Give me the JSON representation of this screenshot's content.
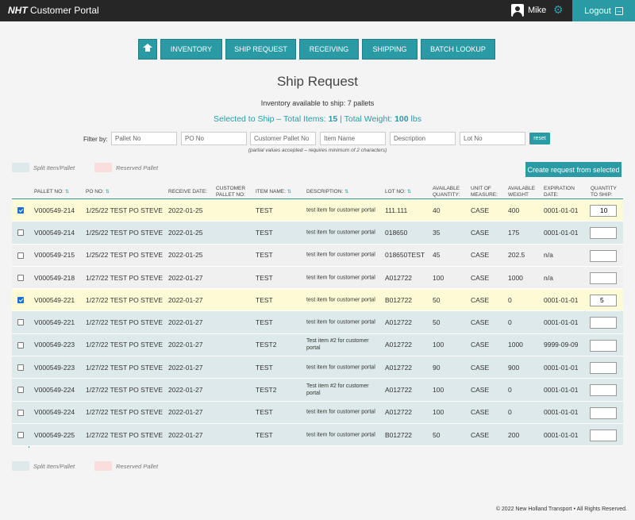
{
  "header": {
    "brand_bold": "NHT",
    "brand_rest": " Customer Portal",
    "user_name": "Mike",
    "logout_label": "Logout"
  },
  "nav": {
    "items": [
      "INVENTORY",
      "SHIP REQUEST",
      "RECEIVING",
      "SHIPPING",
      "BATCH LOOKUP"
    ]
  },
  "page": {
    "title": "Ship Request",
    "available": "Inventory available to ship: 7 pallets",
    "selected_prefix": "Selected to Ship – Total Items: ",
    "total_items": "15",
    "weight_prefix": " | Total Weight: ",
    "total_weight": "100",
    "weight_unit": " lbs"
  },
  "filter": {
    "label": "Filter by:",
    "placeholders": [
      "Pallet No",
      "PO No",
      "Customer Pallet No",
      "Item Name",
      "Description",
      "Lot No"
    ],
    "reset_label": "reset",
    "hint": "(partial values accepted – requires minimum of 2 characters)"
  },
  "legend": {
    "split": "Split Item/Pallet",
    "reserved": "Reserved Pallet"
  },
  "create_label": "Create request from selected",
  "table": {
    "headers": {
      "pallet": "PALLET NO:",
      "po": "PO NO:",
      "receive": "RECEIVE DATE:",
      "cust_pallet_1": "CUSTOMER",
      "cust_pallet_2": "PALLET NO:",
      "item": "ITEM NAME:",
      "desc": "DESCRIPTION:",
      "lot": "LOT NO:",
      "avail_1": "AVAILABLE",
      "avail_2": "QUANTITY:",
      "unit_1": "UNIT OF",
      "unit_2": "MEASURE:",
      "weight_1": "AVAILABLE",
      "weight_2": "WEIGHT",
      "exp_1": "EXPIRATION",
      "exp_2": "DATE:",
      "qty_1": "QUANTITY",
      "qty_2": "TO SHIP:"
    },
    "rows": [
      {
        "pallet": "V000549-214",
        "po": "1/25/22 TEST PO STEVE",
        "receive": "2022-01-25",
        "item": "TEST",
        "desc": "test item for customer portal",
        "lot": "111.111",
        "avail": "40",
        "unit": "CASE",
        "weight": "400",
        "exp": "0001-01-01",
        "qty": "10"
      },
      {
        "pallet": "V000549-214",
        "po": "1/25/22 TEST PO STEVE",
        "receive": "2022-01-25",
        "item": "TEST",
        "desc": "test item for customer portal",
        "lot": "018650",
        "avail": "35",
        "unit": "CASE",
        "weight": "175",
        "exp": "0001-01-01",
        "qty": ""
      },
      {
        "pallet": "V000549-215",
        "po": "1/25/22 TEST PO STEVE",
        "receive": "2022-01-25",
        "item": "TEST",
        "desc": "test item for customer portal",
        "lot": "018650TEST",
        "avail": "45",
        "unit": "CASE",
        "weight": "202.5",
        "exp": "n/a",
        "qty": ""
      },
      {
        "pallet": "V000549-218",
        "po": "1/27/22 TEST PO STEVE",
        "receive": "2022-01-27",
        "item": "TEST",
        "desc": "test item for customer portal",
        "lot": "A012722",
        "avail": "100",
        "unit": "CASE",
        "weight": "1000",
        "exp": "n/a",
        "qty": ""
      },
      {
        "pallet": "V000549-221",
        "po": "1/27/22 TEST PO STEVE",
        "receive": "2022-01-27",
        "item": "TEST",
        "desc": "test item for customer portal",
        "lot": "B012722",
        "avail": "50",
        "unit": "CASE",
        "weight": "0",
        "exp": "0001-01-01",
        "qty": "5"
      },
      {
        "pallet": "V000549-221",
        "po": "1/27/22 TEST PO STEVE",
        "receive": "2022-01-27",
        "item": "TEST",
        "desc": "test item for customer portal",
        "lot": "A012722",
        "avail": "50",
        "unit": "CASE",
        "weight": "0",
        "exp": "0001-01-01",
        "qty": ""
      },
      {
        "pallet": "V000549-223",
        "po": "1/27/22 TEST PO STEVE",
        "receive": "2022-01-27",
        "item": "TEST2",
        "desc": "Test item #2 for customer portal",
        "lot": "A012722",
        "avail": "100",
        "unit": "CASE",
        "weight": "1000",
        "exp": "9999-09-09",
        "qty": ""
      },
      {
        "pallet": "V000549-223",
        "po": "1/27/22 TEST PO STEVE",
        "receive": "2022-01-27",
        "item": "TEST",
        "desc": "test item for customer portal",
        "lot": "A012722",
        "avail": "90",
        "unit": "CASE",
        "weight": "900",
        "exp": "0001-01-01",
        "qty": ""
      },
      {
        "pallet": "V000549-224",
        "po": "1/27/22 TEST PO STEVE",
        "receive": "2022-01-27",
        "item": "TEST2",
        "desc": "Test item #2 for customer portal",
        "lot": "A012722",
        "avail": "100",
        "unit": "CASE",
        "weight": "0",
        "exp": "0001-01-01",
        "qty": ""
      },
      {
        "pallet": "V000549-224",
        "po": "1/27/22 TEST PO STEVE",
        "receive": "2022-01-27",
        "item": "TEST",
        "desc": "test item for customer portal",
        "lot": "A012722",
        "avail": "100",
        "unit": "CASE",
        "weight": "0",
        "exp": "0001-01-01",
        "qty": ""
      },
      {
        "pallet": "V000549-225",
        "po": "1/27/22 TEST PO STEVE",
        "receive": "2022-01-27",
        "item": "TEST",
        "desc": "test item for customer portal",
        "lot": "B012722",
        "avail": "50",
        "unit": "CASE",
        "weight": "200",
        "exp": "0001-01-01",
        "qty": ""
      }
    ]
  },
  "footer": "© 2022 New Holland Transport • All Rights Reserved.",
  "colors": {
    "accent": "#2a9aa5",
    "topbar": "#262626",
    "selected_row": "#fdfbd6",
    "split_row": "#dde9ea",
    "normal_row": "#f0f0f0",
    "reserved": "#f9dede"
  },
  "icons": [
    "user-icon",
    "gear-icon",
    "logout-icon",
    "home-icon",
    "sort-icon",
    "checkbox-icon"
  ]
}
